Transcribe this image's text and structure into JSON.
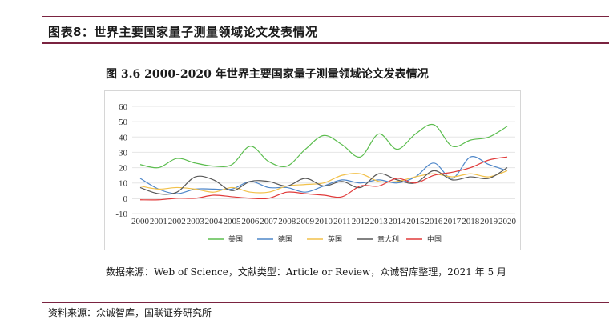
{
  "header": {
    "title": "图表8：世界主要国家量子测量领域论文发表情况"
  },
  "figure": {
    "title": "图 3.6 2000-2020 年世界主要国家量子测量领域论文发表情况",
    "note": "数据来源：Web of Science，文献类型：Article or Review，众诚智库整理，2021 年 5 月"
  },
  "footer": {
    "source": "资料来源：众诚智库，国联证券研究所"
  },
  "chart_data": {
    "type": "line",
    "title": "",
    "xlabel": "",
    "ylabel": "",
    "categories": [
      "2000",
      "2001",
      "2002",
      "2003",
      "2004",
      "2005",
      "2006",
      "2007",
      "2008",
      "2009",
      "2010",
      "2011",
      "2012",
      "2013",
      "2014",
      "2015",
      "2016",
      "2017",
      "2018",
      "2019",
      "2020"
    ],
    "ylim": [
      -10,
      60
    ],
    "yticks": [
      -10,
      0,
      10,
      20,
      30,
      40,
      50,
      60
    ],
    "grid": true,
    "legend_position": "bottom",
    "series": [
      {
        "name": "美国",
        "color": "#5cbd4f",
        "values": [
          22,
          20,
          26,
          23,
          21,
          22,
          34,
          24,
          21,
          32,
          41,
          35,
          27,
          42,
          32,
          42,
          48,
          34,
          38,
          40,
          47
        ]
      },
      {
        "name": "德国",
        "color": "#4f87c9",
        "values": [
          13,
          6,
          3,
          6,
          6,
          6,
          11,
          7,
          7,
          4,
          8,
          12,
          10,
          12,
          10,
          14,
          23,
          13,
          27,
          22,
          18
        ]
      },
      {
        "name": "英国",
        "color": "#f2c14a",
        "values": [
          8,
          6,
          7,
          6,
          4,
          7,
          4,
          4,
          8,
          9,
          10,
          15,
          16,
          11,
          11,
          14,
          16,
          14,
          16,
          14,
          18
        ]
      },
      {
        "name": "意大利",
        "color": "#595959",
        "values": [
          7,
          3,
          4,
          14,
          12,
          5,
          11,
          11,
          8,
          13,
          8,
          11,
          7,
          16,
          12,
          10,
          18,
          12,
          14,
          13,
          20
        ]
      },
      {
        "name": "中国",
        "color": "#e03a3a",
        "values": [
          -1,
          -1,
          0,
          0,
          2,
          1,
          0,
          0,
          4,
          3,
          2,
          1,
          8,
          8,
          13,
          10,
          15,
          17,
          20,
          25,
          27
        ]
      }
    ]
  }
}
